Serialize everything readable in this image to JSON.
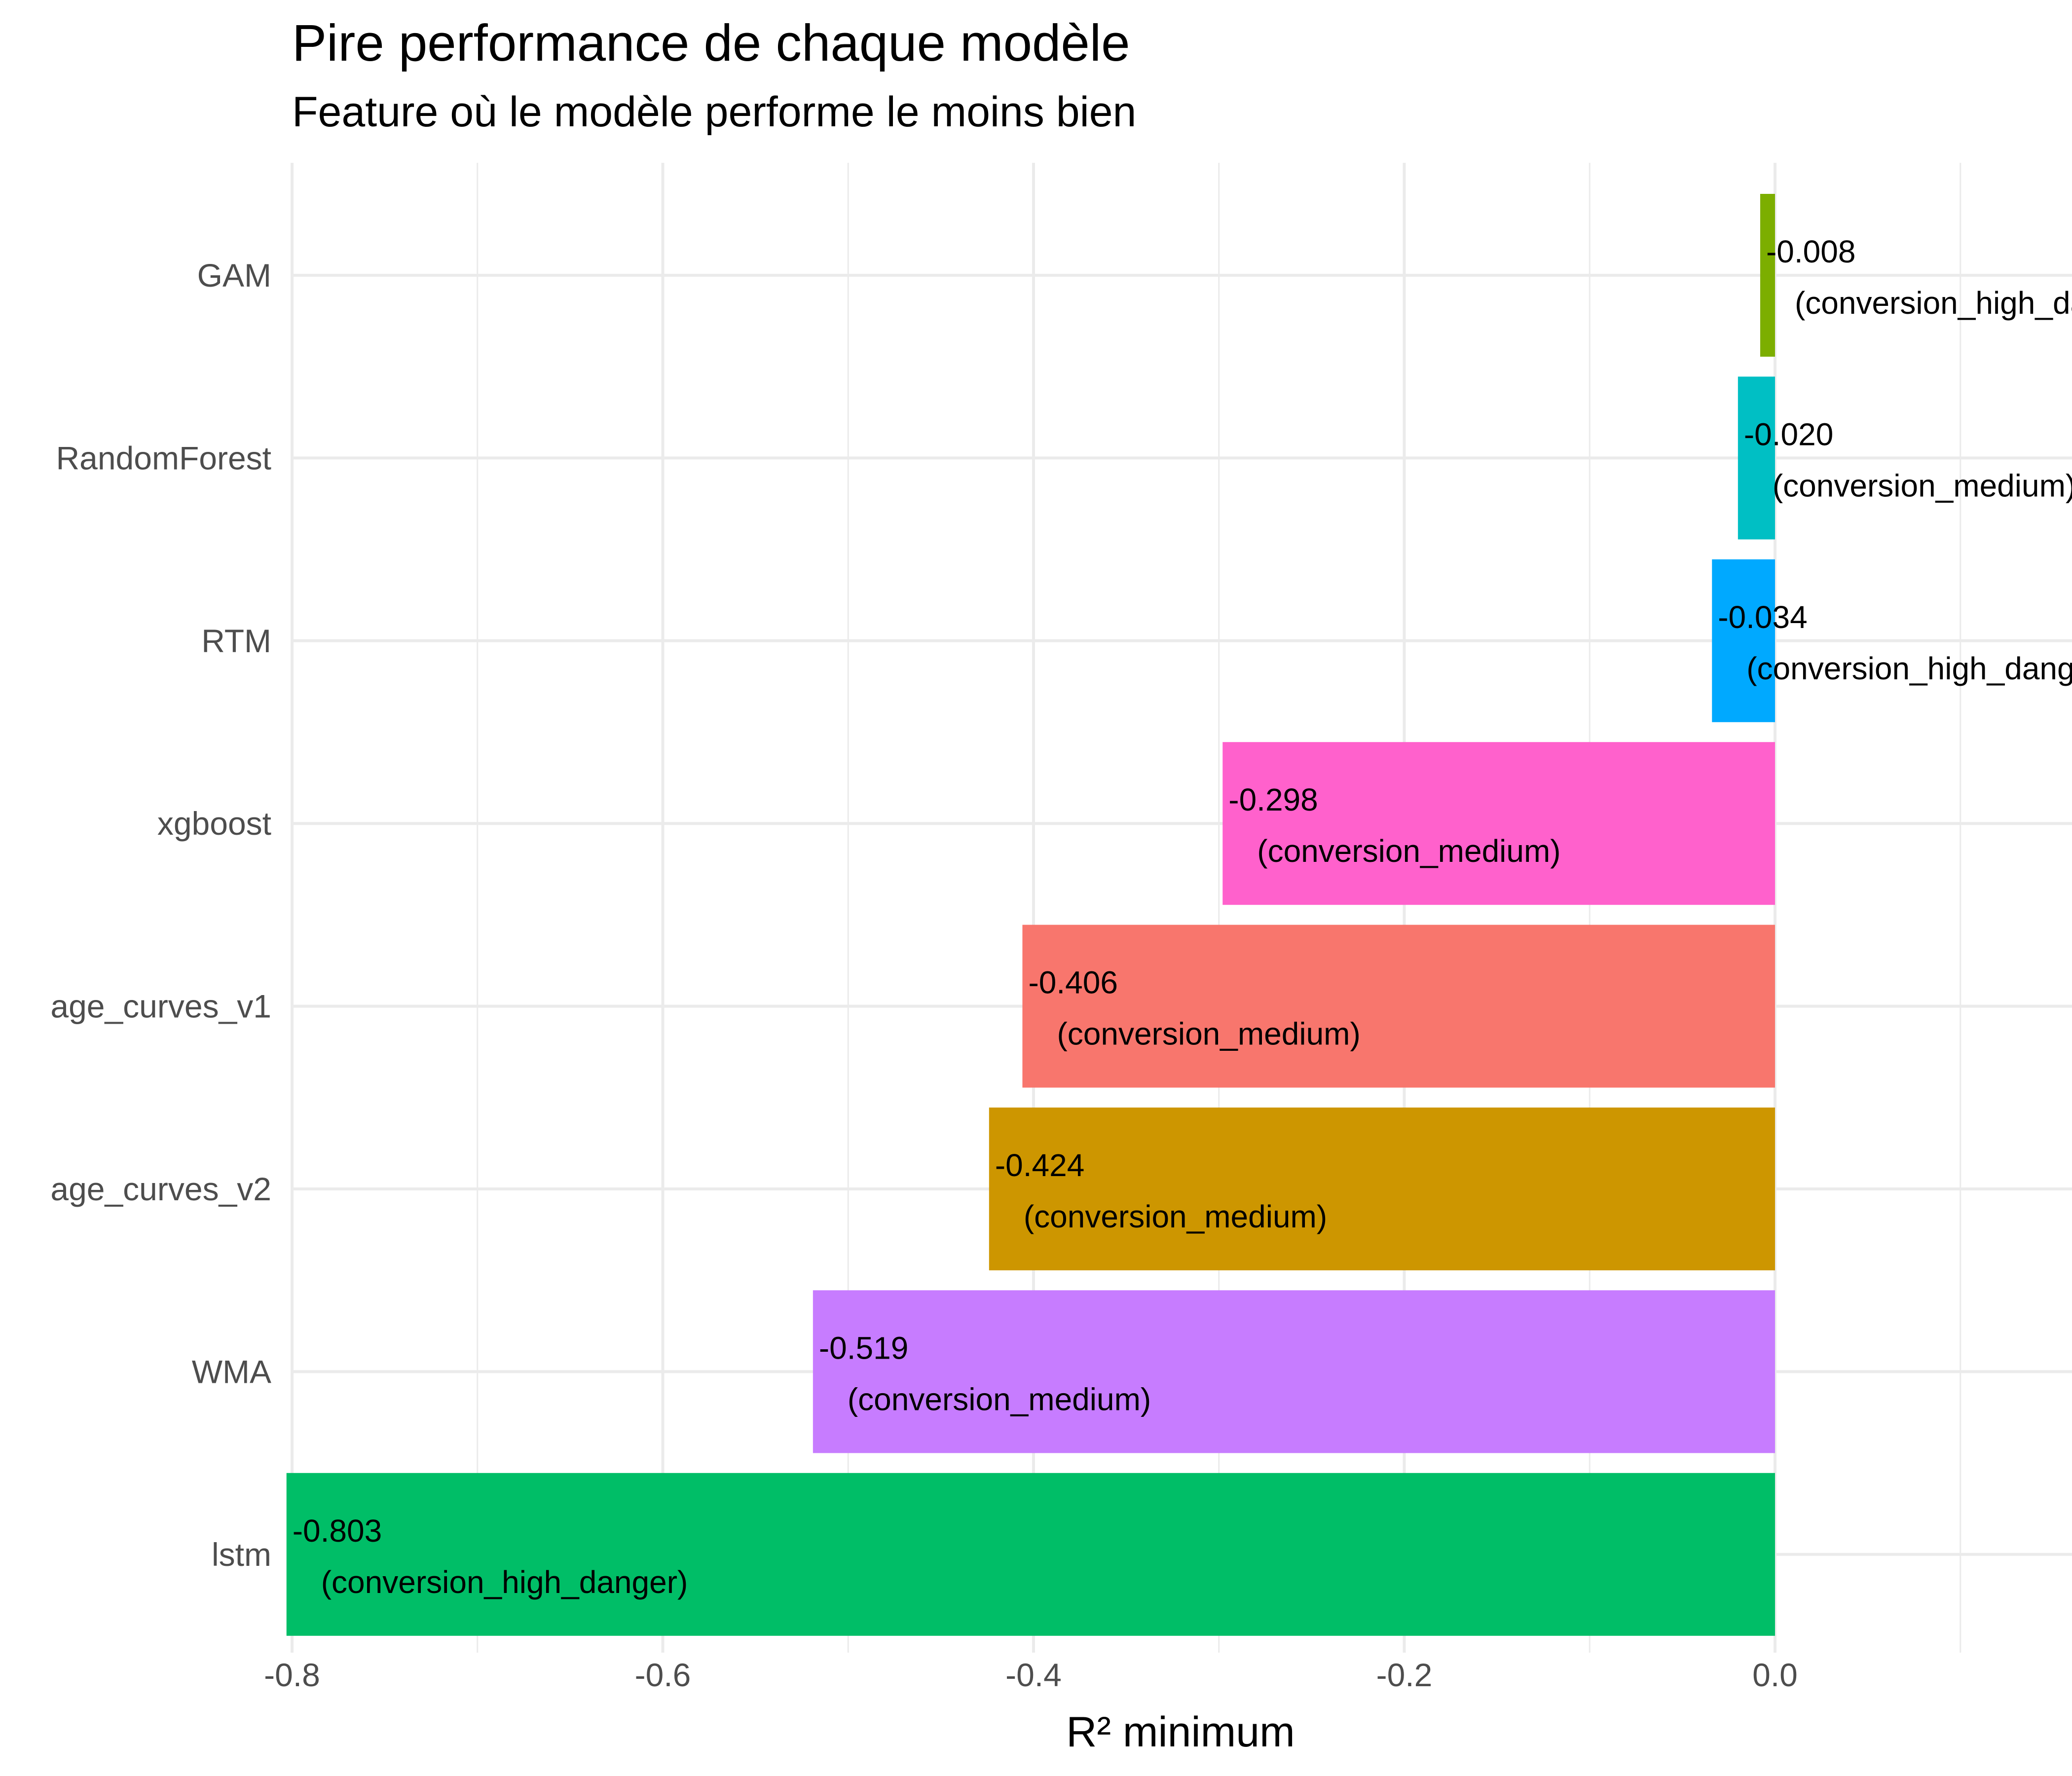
{
  "chart_data": {
    "type": "bar",
    "orientation": "horizontal",
    "title": "Pire performance de chaque modèle",
    "subtitle": "Feature où le modèle performe le moins bien",
    "xlabel": "R² minimum",
    "ylabel": "",
    "xlim": [
      -0.8,
      0.15
    ],
    "x_ticks": [
      "-0.8",
      "-0.6",
      "-0.4",
      "-0.2",
      "0.0"
    ],
    "x_tick_values": [
      -0.8,
      -0.6,
      -0.4,
      -0.2,
      0.0
    ],
    "grid": true,
    "legend": "none",
    "categories": [
      "GAM",
      "RandomForest",
      "RTM",
      "xgboost",
      "age_curves_v1",
      "age_curves_v2",
      "WMA",
      "lstm"
    ],
    "values": [
      -0.008,
      -0.02,
      -0.034,
      -0.298,
      -0.406,
      -0.424,
      -0.519,
      -0.803
    ],
    "value_labels": [
      "-0.008",
      "-0.020",
      "-0.034",
      "-0.298",
      "-0.406",
      "-0.424",
      "-0.519",
      "-0.803"
    ],
    "feature_labels": [
      "(conversion_high_danger)",
      "(conversion_medium)",
      "(conversion_high_danger)",
      "(conversion_medium)",
      "(conversion_medium)",
      "(conversion_medium)",
      "(conversion_medium)",
      "(conversion_high_danger)"
    ],
    "colors": [
      "#7CAE00",
      "#00BFC4",
      "#00A9FF",
      "#FF61CC",
      "#F8766D",
      "#CD9600",
      "#C77CFF",
      "#00BE67"
    ]
  }
}
